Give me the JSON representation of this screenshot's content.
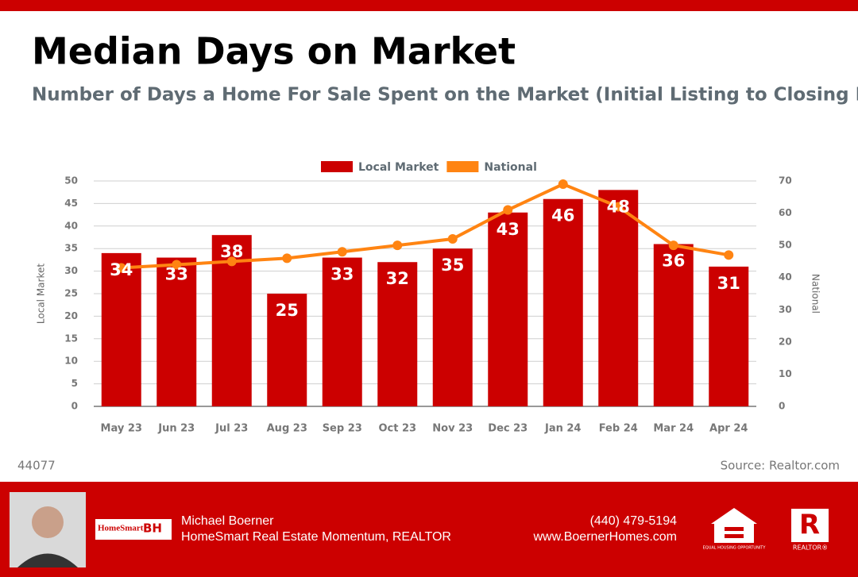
{
  "chart_data": {
    "type": "bar",
    "title": "Median Days on Market",
    "subtitle": "Number of Days a Home For Sale Spent on the Market (Initial Listing to Closing Date)",
    "categories": [
      "May 23",
      "Jun 23",
      "Jul 23",
      "Aug 23",
      "Sep 23",
      "Oct 23",
      "Nov 23",
      "Dec 23",
      "Jan 24",
      "Feb 24",
      "Mar 24",
      "Apr 24"
    ],
    "series": [
      {
        "name": "Local Market",
        "type": "bar",
        "color": "#cc0000",
        "values": [
          34,
          33,
          38,
          25,
          33,
          32,
          35,
          43,
          46,
          48,
          36,
          31
        ]
      },
      {
        "name": "National",
        "type": "line",
        "axis": "y2",
        "color": "#ff8412",
        "values": [
          43,
          44,
          45,
          46,
          48,
          50,
          52,
          61,
          69,
          62,
          50,
          47
        ]
      }
    ],
    "ylabel": "Local Market",
    "y2label": "National",
    "ylim": [
      0,
      50
    ],
    "yticks": [
      0,
      5,
      10,
      15,
      20,
      25,
      30,
      35,
      40,
      45,
      50
    ],
    "y2lim": [
      0,
      70
    ],
    "y2ticks": [
      0,
      10,
      20,
      30,
      40,
      50,
      60,
      70
    ],
    "grid": true,
    "legend": "top"
  },
  "zip": "44077",
  "source": "Source: Realtor.com",
  "footer": {
    "name": "Michael Boerner",
    "company": "HomeSmart Real Estate Momentum, REALTOR",
    "phone": "(440) 479-5194",
    "website": "www.BoernerHomes.com",
    "brand": "HomeSmart",
    "brand2": "BH",
    "equal_housing": "EQUAL HOUSING OPPORTUNITY",
    "realtor": "REALTOR®"
  }
}
